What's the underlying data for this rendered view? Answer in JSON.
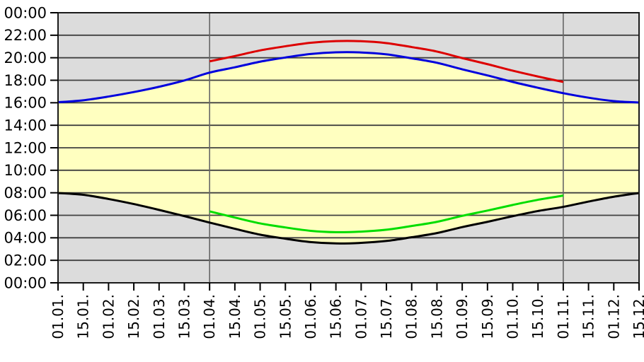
{
  "chart_data": {
    "type": "line",
    "description": "Sunrise and sunset times across the year; yellow band is daylight between sunrise (black) and sunset (blue); green and red curves show the daylight-saving-time sunrise/sunset between 01.04. and 01.11.",
    "x_labels": [
      "01.01.",
      "15.01.",
      "01.02.",
      "15.02.",
      "01.03.",
      "15.03.",
      "01.04.",
      "15.04.",
      "01.05.",
      "15.05.",
      "01.06.",
      "15.06.",
      "01.07.",
      "15.07.",
      "01.08.",
      "15.08.",
      "01.09.",
      "15.09.",
      "01.10.",
      "15.10.",
      "01.11.",
      "15.11.",
      "01.12.",
      "15.12."
    ],
    "y_tick_labels": [
      "00:00",
      "02:00",
      "04:00",
      "06:00",
      "08:00",
      "10:00",
      "12:00",
      "14:00",
      "16:00",
      "18:00",
      "20:00",
      "22:00",
      "00:00"
    ],
    "ylim_hours": [
      0,
      24
    ],
    "y_step_hours": 2,
    "grid": {
      "horizontal": true,
      "vertical_line_indices": [
        6,
        20
      ],
      "vertical_line_labels": [
        "01.04.",
        "01.11."
      ]
    },
    "legend": "none",
    "series": [
      {
        "name": "sunrise",
        "color": "#000000",
        "start_index": 0,
        "values_hours": [
          7.98,
          7.82,
          7.45,
          7.0,
          6.48,
          5.93,
          5.35,
          4.8,
          4.28,
          3.92,
          3.62,
          3.5,
          3.55,
          3.72,
          4.05,
          4.42,
          4.95,
          5.42,
          5.92,
          6.38,
          6.75,
          7.22,
          7.65,
          7.98
        ]
      },
      {
        "name": "sunset",
        "color": "#0000dd",
        "start_index": 0,
        "values_hours": [
          16.05,
          16.22,
          16.55,
          16.95,
          17.42,
          17.98,
          18.68,
          19.15,
          19.65,
          20.02,
          20.33,
          20.48,
          20.47,
          20.3,
          19.95,
          19.55,
          18.97,
          18.43,
          17.85,
          17.33,
          16.85,
          16.45,
          16.15,
          16.02
        ]
      },
      {
        "name": "sunrise-dst",
        "color": "#00dd00",
        "start_index": 6,
        "values_hours": [
          6.35,
          5.8,
          5.28,
          4.92,
          4.62,
          4.5,
          4.55,
          4.72,
          5.05,
          5.42,
          5.95,
          6.42,
          6.92,
          7.38,
          7.75
        ]
      },
      {
        "name": "sunset-dst",
        "color": "#dd0000",
        "start_index": 6,
        "values_hours": [
          19.68,
          20.15,
          20.65,
          21.02,
          21.33,
          21.48,
          21.47,
          21.3,
          20.95,
          20.55,
          19.97,
          19.43,
          18.85,
          18.33,
          17.85
        ]
      }
    ],
    "colors": {
      "day_fill": "#ffffc0",
      "night_fill": "#dcdcdc",
      "grid_horizontal": "#404040",
      "grid_vertical": "#666666",
      "frame": "#1a1a1a",
      "tick": "#000000"
    }
  }
}
